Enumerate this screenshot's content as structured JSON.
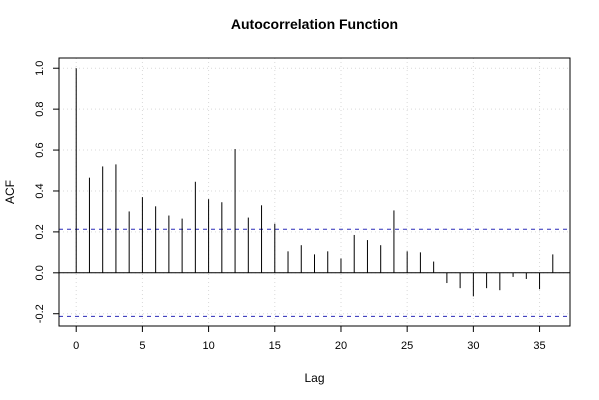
{
  "chart_data": {
    "type": "bar",
    "title": "Autocorrelation Function",
    "xlabel": "Lag",
    "ylabel": "ACF",
    "xlim": [
      -1.3,
      37.3
    ],
    "ylim": [
      -0.26,
      1.05
    ],
    "x_ticks": [
      0,
      5,
      10,
      15,
      20,
      25,
      30,
      35
    ],
    "y_ticks": [
      -0.2,
      0.0,
      0.2,
      0.4,
      0.6,
      0.8,
      1.0
    ],
    "x_tick_labels": [
      "0",
      "5",
      "10",
      "15",
      "20",
      "25",
      "30",
      "35"
    ],
    "y_tick_labels": [
      "-0.2",
      "0.0",
      "0.2",
      "0.4",
      "0.6",
      "0.8",
      "1.0"
    ],
    "grid": true,
    "confidence_band": [
      0.213,
      -0.213
    ],
    "lags": [
      0,
      1,
      2,
      3,
      4,
      5,
      6,
      7,
      8,
      9,
      10,
      11,
      12,
      13,
      14,
      15,
      16,
      17,
      18,
      19,
      20,
      21,
      22,
      23,
      24,
      25,
      26,
      27,
      28,
      29,
      30,
      31,
      32,
      33,
      34,
      35,
      36
    ],
    "values": [
      1.0,
      0.465,
      0.52,
      0.53,
      0.3,
      0.37,
      0.325,
      0.28,
      0.265,
      0.445,
      0.36,
      0.345,
      0.605,
      0.27,
      0.33,
      0.24,
      0.105,
      0.135,
      0.09,
      0.105,
      0.07,
      0.185,
      0.16,
      0.135,
      0.305,
      0.105,
      0.1,
      0.055,
      -0.05,
      -0.075,
      -0.115,
      -0.075,
      -0.085,
      -0.02,
      -0.03,
      -0.08,
      0.09
    ],
    "colors": {
      "bars": "#000000",
      "confidence_band": "#2b2bb8",
      "grid": "#d9d9d9"
    }
  }
}
